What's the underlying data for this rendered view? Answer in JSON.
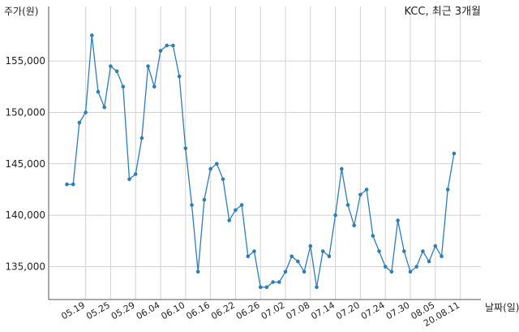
{
  "chart_data": {
    "type": "line",
    "title": "KCC, 최근 3개월",
    "ylabel": "주가(원)",
    "xlabel": "날짜(일)",
    "ylim": [
      131800,
      160300
    ],
    "yticks": [
      135000,
      140000,
      145000,
      150000,
      155000
    ],
    "ytick_labels": [
      "135,000",
      "140,000",
      "145,000",
      "150,000",
      "155,000"
    ],
    "xtick_labels": [
      "05.19",
      "05.25",
      "05.29",
      "06.04",
      "06.10",
      "06.16",
      "06.22",
      "06.26",
      "07.02",
      "07.08",
      "07.14",
      "07.20",
      "07.24",
      "07.30",
      "08.05",
      "20.08.11"
    ],
    "xtick_index": [
      3,
      7,
      11,
      15,
      19,
      23,
      27,
      31,
      35,
      39,
      43,
      47,
      51,
      55,
      59,
      63
    ],
    "grid": true,
    "line_color": "#2f7db5",
    "series": [
      {
        "values": [
          143000,
          143000,
          149000,
          150000,
          157500,
          152000,
          150500,
          154500,
          154000,
          152500,
          143500,
          144000,
          147500,
          154500,
          152500,
          156000,
          156500,
          156500,
          153500,
          146500,
          141000,
          134500,
          141500,
          144500,
          145000,
          143500,
          139500,
          140500,
          141000,
          136000,
          136500,
          133000,
          133000,
          133500,
          133500,
          134500,
          136000,
          135500,
          134500,
          137000,
          133000,
          136500,
          136000,
          140000,
          144500,
          141000,
          139000,
          142000,
          142500,
          138000,
          136500,
          135000,
          134500,
          139500,
          136500,
          134500,
          135000,
          136500,
          135500,
          137000,
          136000,
          142500,
          146000
        ]
      }
    ]
  }
}
